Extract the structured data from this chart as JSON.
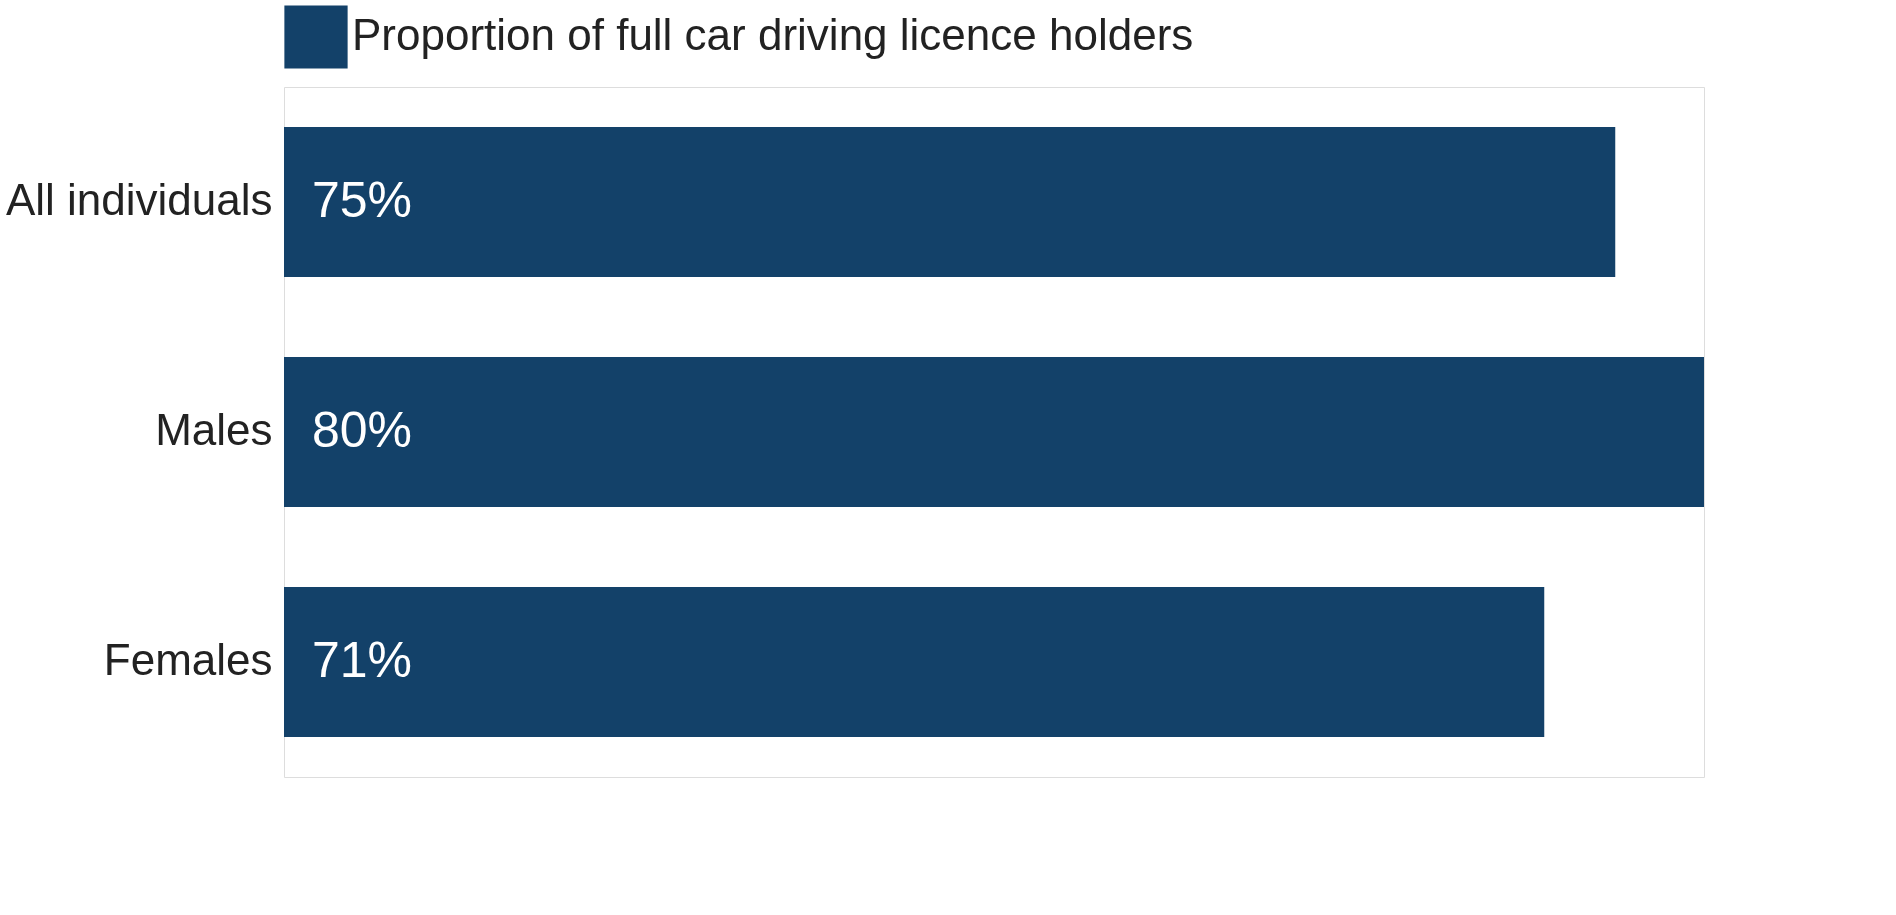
{
  "chart_data": {
    "type": "bar",
    "orientation": "horizontal",
    "categories": [
      "All individuals",
      "Males",
      "Females"
    ],
    "series": [
      {
        "name": "Proportion of full car driving licence holders",
        "color": "#134169",
        "values": [
          75,
          80,
          71
        ],
        "value_labels": [
          "75%",
          "80%",
          "71%"
        ]
      }
    ],
    "legend": "top",
    "grid": false
  }
}
